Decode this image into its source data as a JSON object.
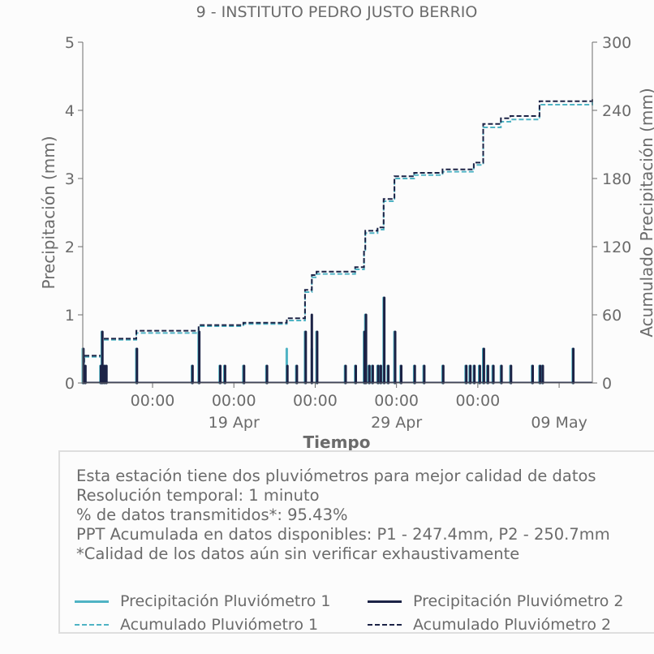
{
  "chart_data": {
    "type": "line",
    "title": "9 - INSTITUTO PEDRO JUSTO BERRIO",
    "xlabel": "Tiempo",
    "ylabel": "Precipitación (mm)",
    "ylabel_right": "Acumulado Precipitación (mm)",
    "ylim": [
      0,
      5
    ],
    "ylim_right": [
      0,
      300
    ],
    "yticks": [
      "0",
      "1",
      "2",
      "3",
      "4",
      "5"
    ],
    "yticks_right": [
      "0",
      "60",
      "120",
      "180",
      "240",
      "300"
    ],
    "x_start": "2024-04-09 17:00",
    "x_end": "2024-05-11 01:00",
    "xticks_major": [
      {
        "x": "2024-04-14 00:00",
        "label": "00:00"
      },
      {
        "x": "2024-04-19 00:00",
        "label": "00:00"
      },
      {
        "x": "2024-04-24 00:00",
        "label": "00:00"
      },
      {
        "x": "2024-04-29 00:00",
        "label": "00:00"
      },
      {
        "x": "2024-05-04 00:00",
        "label": "00:00"
      },
      {
        "x": "2024-05-09 00:00",
        "label": ""
      }
    ],
    "xticks_date": [
      {
        "x": "2024-04-19 00:00",
        "label": "19 Apr"
      },
      {
        "x": "2024-04-29 00:00",
        "label": "29 Apr"
      },
      {
        "x": "2024-05-09 00:00",
        "label": "09 May"
      }
    ],
    "series": [
      {
        "name": "Precipitación Pluviómetro 1",
        "kind": "bars",
        "color": "#4fb3c4",
        "points": [
          [
            "2024-04-09 17:00",
            0.5
          ],
          [
            "2024-04-09 20:00",
            0.25
          ],
          [
            "2024-04-10 19:00",
            0.25
          ],
          [
            "2024-04-10 21:00",
            0.75
          ],
          [
            "2024-04-11 00:00",
            0.25
          ],
          [
            "2024-04-11 03:00",
            0.25
          ],
          [
            "2024-04-13 00:00",
            0.5
          ],
          [
            "2024-04-16 10:00",
            0.25
          ],
          [
            "2024-04-16 20:00",
            0.75
          ],
          [
            "2024-04-18 03:00",
            0.25
          ],
          [
            "2024-04-18 10:00",
            0.25
          ],
          [
            "2024-04-19 14:00",
            0.25
          ],
          [
            "2024-04-21 00:00",
            0.25
          ],
          [
            "2024-04-22 06:00",
            0.5
          ],
          [
            "2024-04-22 20:00",
            0.25
          ],
          [
            "2024-04-23 09:00",
            0.75
          ],
          [
            "2024-04-23 19:00",
            0.5
          ],
          [
            "2024-04-24 02:00",
            0.75
          ],
          [
            "2024-04-25 20:00",
            0.25
          ],
          [
            "2024-04-26 11:00",
            0.25
          ],
          [
            "2024-04-27 00:00",
            0.75
          ],
          [
            "2024-04-27 02:00",
            1.0
          ],
          [
            "2024-04-27 07:00",
            0.25
          ],
          [
            "2024-04-27 12:00",
            0.25
          ],
          [
            "2024-04-27 20:00",
            0.25
          ],
          [
            "2024-04-28 00:00",
            0.25
          ],
          [
            "2024-04-28 05:00",
            1.25
          ],
          [
            "2024-04-28 11:00",
            0.25
          ],
          [
            "2024-04-28 21:00",
            0.75
          ],
          [
            "2024-04-29 06:00",
            0.25
          ],
          [
            "2024-04-30 02:00",
            0.25
          ],
          [
            "2024-04-30 16:00",
            0.25
          ],
          [
            "2024-05-01 20:00",
            0.25
          ],
          [
            "2024-05-03 06:00",
            0.25
          ],
          [
            "2024-05-03 12:00",
            0.25
          ],
          [
            "2024-05-03 18:00",
            0.25
          ],
          [
            "2024-05-04 02:00",
            0.25
          ],
          [
            "2024-05-04 08:00",
            0.5
          ],
          [
            "2024-05-04 14:00",
            0.25
          ],
          [
            "2024-05-04 22:00",
            0.25
          ],
          [
            "2024-05-05 10:00",
            0.25
          ],
          [
            "2024-05-06 00:00",
            0.25
          ],
          [
            "2024-05-07 08:00",
            0.25
          ],
          [
            "2024-05-07 19:00",
            0.25
          ],
          [
            "2024-05-07 23:00",
            0.25
          ],
          [
            "2024-05-09 20:00",
            0.5
          ]
        ]
      },
      {
        "name": "Precipitación Pluviómetro 2",
        "kind": "bars",
        "color": "#1c2346",
        "points": [
          [
            "2024-04-09 18:00",
            0.5
          ],
          [
            "2024-04-09 21:00",
            0.25
          ],
          [
            "2024-04-10 20:00",
            0.25
          ],
          [
            "2024-04-10 22:00",
            0.75
          ],
          [
            "2024-04-11 01:00",
            0.25
          ],
          [
            "2024-04-11 04:00",
            0.25
          ],
          [
            "2024-04-13 01:00",
            0.5
          ],
          [
            "2024-04-16 11:00",
            0.25
          ],
          [
            "2024-04-16 21:00",
            0.75
          ],
          [
            "2024-04-18 04:00",
            0.25
          ],
          [
            "2024-04-18 11:00",
            0.25
          ],
          [
            "2024-04-19 15:00",
            0.25
          ],
          [
            "2024-04-21 01:00",
            0.25
          ],
          [
            "2024-04-22 07:00",
            0.25
          ],
          [
            "2024-04-22 21:00",
            0.25
          ],
          [
            "2024-04-23 10:00",
            0.75
          ],
          [
            "2024-04-23 19:00",
            1.0
          ],
          [
            "2024-04-24 03:00",
            0.75
          ],
          [
            "2024-04-25 21:00",
            0.25
          ],
          [
            "2024-04-26 12:00",
            0.25
          ],
          [
            "2024-04-27 01:00",
            0.75
          ],
          [
            "2024-04-27 03:00",
            1.0
          ],
          [
            "2024-04-27 08:00",
            0.25
          ],
          [
            "2024-04-27 13:00",
            0.25
          ],
          [
            "2024-04-27 21:00",
            0.25
          ],
          [
            "2024-04-28 01:00",
            0.25
          ],
          [
            "2024-04-28 06:00",
            1.25
          ],
          [
            "2024-04-28 12:00",
            0.25
          ],
          [
            "2024-04-28 22:00",
            0.75
          ],
          [
            "2024-04-29 07:00",
            0.25
          ],
          [
            "2024-04-30 03:00",
            0.25
          ],
          [
            "2024-04-30 17:00",
            0.25
          ],
          [
            "2024-05-01 21:00",
            0.25
          ],
          [
            "2024-05-03 07:00",
            0.25
          ],
          [
            "2024-05-03 13:00",
            0.25
          ],
          [
            "2024-05-03 19:00",
            0.25
          ],
          [
            "2024-05-04 03:00",
            0.25
          ],
          [
            "2024-05-04 09:00",
            0.5
          ],
          [
            "2024-05-04 15:00",
            0.25
          ],
          [
            "2024-05-04 23:00",
            0.25
          ],
          [
            "2024-05-05 11:00",
            0.25
          ],
          [
            "2024-05-06 01:00",
            0.25
          ],
          [
            "2024-05-07 09:00",
            0.25
          ],
          [
            "2024-05-07 20:00",
            0.25
          ],
          [
            "2024-05-08 00:00",
            0.25
          ],
          [
            "2024-05-09 21:00",
            0.5
          ]
        ]
      },
      {
        "name": "Acumulado Pluviómetro 1",
        "kind": "step",
        "axis": "right",
        "color": "#4fb3c4",
        "points": [
          [
            "2024-04-09 17:00",
            18
          ],
          [
            "2024-04-09 19:00",
            23
          ],
          [
            "2024-04-10 21:00",
            38
          ],
          [
            "2024-04-13 00:00",
            44
          ],
          [
            "2024-04-16 20:00",
            50
          ],
          [
            "2024-04-19 14:00",
            52
          ],
          [
            "2024-04-22 06:00",
            55
          ],
          [
            "2024-04-23 09:00",
            80
          ],
          [
            "2024-04-23 19:00",
            93
          ],
          [
            "2024-04-24 02:00",
            96
          ],
          [
            "2024-04-26 11:00",
            100
          ],
          [
            "2024-04-27 00:00",
            117
          ],
          [
            "2024-04-27 02:00",
            132
          ],
          [
            "2024-04-27 20:00",
            135
          ],
          [
            "2024-04-28 05:00",
            160
          ],
          [
            "2024-04-28 21:00",
            180
          ],
          [
            "2024-04-30 02:00",
            183
          ],
          [
            "2024-05-01 20:00",
            186
          ],
          [
            "2024-05-03 18:00",
            192
          ],
          [
            "2024-05-04 08:00",
            225
          ],
          [
            "2024-05-05 10:00",
            230
          ],
          [
            "2024-05-06 00:00",
            232
          ],
          [
            "2024-05-07 19:00",
            245
          ],
          [
            "2024-05-11 01:00",
            247.4
          ]
        ]
      },
      {
        "name": "Acumulado Pluviómetro 2",
        "kind": "step",
        "axis": "right",
        "color": "#1c2346",
        "points": [
          [
            "2024-04-09 17:00",
            19
          ],
          [
            "2024-04-09 19:00",
            24
          ],
          [
            "2024-04-10 21:00",
            39
          ],
          [
            "2024-04-13 00:00",
            46
          ],
          [
            "2024-04-16 20:00",
            51
          ],
          [
            "2024-04-19 14:00",
            53
          ],
          [
            "2024-04-22 06:00",
            57
          ],
          [
            "2024-04-23 09:00",
            82
          ],
          [
            "2024-04-23 19:00",
            95
          ],
          [
            "2024-04-24 02:00",
            98
          ],
          [
            "2024-04-26 11:00",
            102
          ],
          [
            "2024-04-27 00:00",
            118
          ],
          [
            "2024-04-27 02:00",
            134
          ],
          [
            "2024-04-27 20:00",
            137
          ],
          [
            "2024-04-28 05:00",
            162
          ],
          [
            "2024-04-28 21:00",
            182
          ],
          [
            "2024-04-30 02:00",
            185
          ],
          [
            "2024-05-01 20:00",
            188
          ],
          [
            "2024-05-03 18:00",
            194
          ],
          [
            "2024-05-04 08:00",
            228
          ],
          [
            "2024-05-05 10:00",
            233
          ],
          [
            "2024-05-06 00:00",
            235
          ],
          [
            "2024-05-07 19:00",
            248
          ],
          [
            "2024-05-11 01:00",
            250.7
          ]
        ]
      }
    ]
  },
  "info": {
    "lines": [
      "Esta estación tiene dos pluviómetros para mejor calidad de datos",
      "Resolución temporal: 1 minuto",
      "% de datos transmitidos*: 95.43%",
      "PPT Acumulada en datos disponibles: P1 - 247.4mm, P2 - 250.7mm",
      "*Calidad de los datos aún sin verificar exhaustivamente"
    ]
  },
  "legend": {
    "p1": "Precipitación Pluviómetro 1",
    "p2": "Precipitación Pluviómetro 2",
    "a1": "Acumulado Pluviómetro 1",
    "a2": "Acumulado Pluviómetro 2"
  },
  "colors": {
    "p1": "#4fb3c4",
    "p2": "#1c2346",
    "axis": "#6b6b6b",
    "box_border": "#dedede"
  }
}
